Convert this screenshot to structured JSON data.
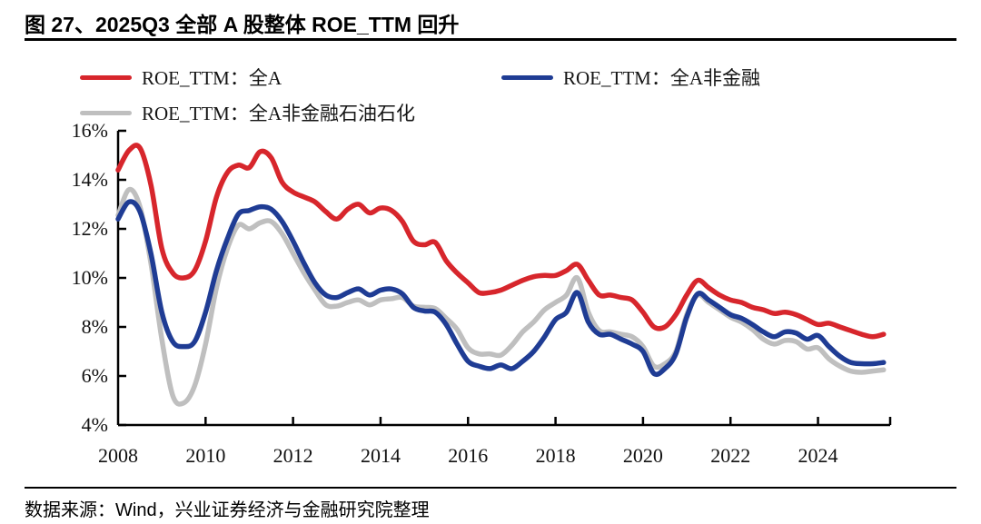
{
  "header": {
    "title": "图 27、2025Q3 全部 A 股整体 ROE_TTM 回升"
  },
  "footer": {
    "source": "数据来源：Wind，兴业证券经济与金融研究院整理"
  },
  "legend": [
    {
      "label": "ROE_TTM：全A",
      "color": "#d7262c"
    },
    {
      "label": "ROE_TTM：全A非金融",
      "color": "#1f3c94"
    },
    {
      "label": "ROE_TTM：全A非金融石油石化",
      "color": "#bfbfbf"
    }
  ],
  "chart_data": {
    "type": "line",
    "title": "图 27、2025Q3 全部 A 股整体 ROE_TTM 回升",
    "xlabel": "",
    "ylabel": "",
    "grid": false,
    "legend_position": "top",
    "xlim": [
      2008,
      2025.65
    ],
    "ylim": [
      4,
      16
    ],
    "x_ticks": [
      2008,
      2010,
      2012,
      2014,
      2016,
      2018,
      2020,
      2022,
      2024
    ],
    "y_tick_values": [
      16,
      14,
      12,
      10,
      8,
      6,
      4
    ],
    "y_tick_labels": [
      "16%",
      "14%",
      "12%",
      "10%",
      "8%",
      "6%",
      "4%"
    ],
    "x": [
      2008,
      2008.25,
      2008.5,
      2008.75,
      2009,
      2009.25,
      2009.5,
      2009.75,
      2010,
      2010.25,
      2010.5,
      2010.75,
      2011,
      2011.25,
      2011.5,
      2011.75,
      2012,
      2012.25,
      2012.5,
      2012.75,
      2013,
      2013.25,
      2013.5,
      2013.75,
      2014,
      2014.25,
      2014.5,
      2014.75,
      2015,
      2015.25,
      2015.5,
      2015.75,
      2016,
      2016.25,
      2016.5,
      2016.75,
      2017,
      2017.25,
      2017.5,
      2017.75,
      2018,
      2018.25,
      2018.5,
      2018.75,
      2019,
      2019.25,
      2019.5,
      2019.75,
      2020,
      2020.25,
      2020.5,
      2020.75,
      2021,
      2021.25,
      2021.5,
      2021.75,
      2022,
      2022.25,
      2022.5,
      2022.75,
      2023,
      2023.25,
      2023.5,
      2023.75,
      2024,
      2024.25,
      2024.5,
      2024.75,
      2025,
      2025.25,
      2025.5
    ],
    "series": [
      {
        "name": "ROE_TTM：全A",
        "color": "#d7262c",
        "values": [
          14.4,
          15.2,
          15.3,
          13.8,
          11.2,
          10.2,
          10.0,
          10.3,
          11.5,
          13.3,
          14.3,
          14.6,
          14.5,
          15.15,
          14.9,
          13.9,
          13.5,
          13.3,
          13.1,
          12.7,
          12.4,
          12.8,
          13.0,
          12.65,
          12.85,
          12.75,
          12.3,
          11.5,
          11.35,
          11.45,
          10.7,
          10.2,
          9.8,
          9.4,
          9.4,
          9.5,
          9.7,
          9.9,
          10.05,
          10.1,
          10.1,
          10.3,
          10.55,
          9.9,
          9.3,
          9.3,
          9.2,
          9.1,
          8.6,
          8.0,
          8.0,
          8.5,
          9.3,
          9.9,
          9.6,
          9.3,
          9.1,
          9.0,
          8.8,
          8.7,
          8.55,
          8.6,
          8.5,
          8.3,
          8.1,
          8.15,
          8.0,
          7.85,
          7.7,
          7.6,
          7.7
        ]
      },
      {
        "name": "ROE_TTM：全A非金融",
        "color": "#1f3c94",
        "values": [
          12.4,
          13.1,
          12.7,
          11.0,
          8.6,
          7.4,
          7.2,
          7.4,
          8.6,
          10.3,
          11.6,
          12.6,
          12.75,
          12.9,
          12.8,
          12.3,
          11.5,
          10.6,
          9.8,
          9.3,
          9.2,
          9.4,
          9.55,
          9.3,
          9.5,
          9.55,
          9.35,
          8.8,
          8.65,
          8.6,
          8.1,
          7.3,
          6.6,
          6.4,
          6.3,
          6.45,
          6.3,
          6.6,
          7.0,
          7.6,
          8.3,
          8.6,
          9.4,
          8.2,
          7.7,
          7.7,
          7.5,
          7.3,
          7.0,
          6.1,
          6.3,
          6.9,
          8.4,
          9.35,
          9.1,
          8.8,
          8.5,
          8.35,
          8.1,
          7.8,
          7.6,
          7.8,
          7.75,
          7.5,
          7.65,
          7.2,
          6.8,
          6.55,
          6.5,
          6.5,
          6.55
        ]
      },
      {
        "name": "ROE_TTM：全A非金融石油石化",
        "color": "#bfbfbf",
        "values": [
          12.55,
          13.6,
          12.9,
          10.6,
          7.5,
          5.2,
          4.9,
          5.6,
          7.3,
          9.6,
          11.2,
          12.15,
          12.0,
          12.25,
          12.3,
          11.8,
          11.0,
          10.2,
          9.5,
          8.9,
          8.85,
          9.0,
          9.1,
          8.9,
          9.1,
          9.15,
          9.2,
          8.85,
          8.8,
          8.75,
          8.35,
          7.9,
          7.15,
          6.9,
          6.9,
          6.85,
          7.25,
          7.8,
          8.2,
          8.7,
          9.0,
          9.3,
          10.0,
          8.6,
          7.85,
          7.8,
          7.7,
          7.6,
          7.2,
          6.4,
          6.5,
          7.0,
          8.5,
          9.3,
          9.0,
          8.7,
          8.4,
          8.2,
          7.9,
          7.5,
          7.3,
          7.45,
          7.4,
          7.1,
          7.15,
          6.7,
          6.4,
          6.2,
          6.15,
          6.2,
          6.25
        ]
      }
    ]
  }
}
